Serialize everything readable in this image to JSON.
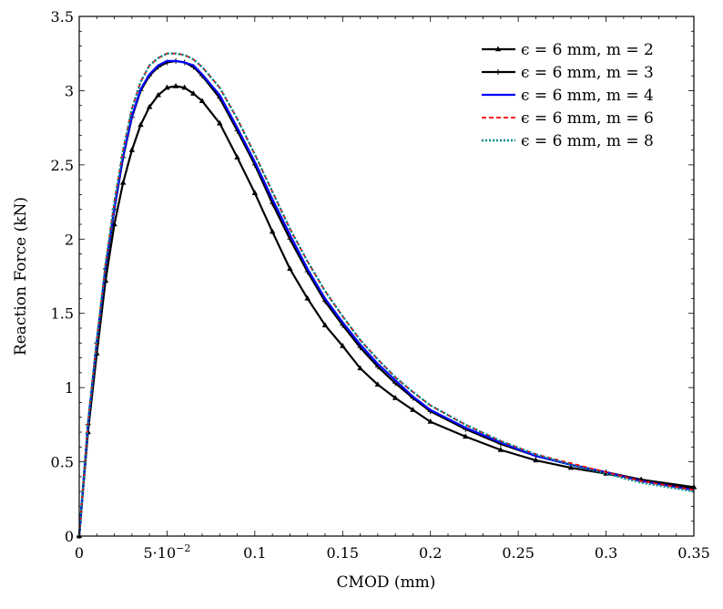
{
  "chart_data": {
    "type": "line",
    "title": "",
    "xlabel": "CMOD (mm)",
    "ylabel": "Reaction Force (kN)",
    "xlim": [
      0,
      0.35
    ],
    "ylim": [
      0,
      3.5
    ],
    "xticks": [
      0,
      0.05,
      0.1,
      0.15,
      0.2,
      0.25,
      0.3,
      0.35
    ],
    "xtick_labels": [
      "0",
      "5·10",
      "0.1",
      "0.15",
      "0.2",
      "0.25",
      "0.3",
      "0.35"
    ],
    "xtick_exponent": "−2",
    "yticks": [
      0,
      0.5,
      1,
      1.5,
      2,
      2.5,
      3,
      3.5
    ],
    "ytick_labels": [
      "0",
      "0.5",
      "1",
      "1.5",
      "2",
      "2.5",
      "3",
      "3.5"
    ],
    "grid": false,
    "legend_position": "top-right",
    "x": [
      0,
      0.005,
      0.01,
      0.015,
      0.02,
      0.025,
      0.03,
      0.035,
      0.04,
      0.045,
      0.05,
      0.055,
      0.06,
      0.065,
      0.07,
      0.08,
      0.09,
      0.1,
      0.11,
      0.12,
      0.13,
      0.14,
      0.15,
      0.16,
      0.17,
      0.18,
      0.19,
      0.2,
      0.22,
      0.24,
      0.26,
      0.28,
      0.3,
      0.32,
      0.35
    ],
    "series": [
      {
        "name": "ϵ = 6 mm, m = 2",
        "color": "#000000",
        "style": "solid",
        "marker": "triangle",
        "values": [
          0,
          0.7,
          1.23,
          1.72,
          2.1,
          2.38,
          2.6,
          2.77,
          2.89,
          2.97,
          3.02,
          3.03,
          3.02,
          2.98,
          2.93,
          2.78,
          2.55,
          2.31,
          2.05,
          1.8,
          1.6,
          1.42,
          1.28,
          1.13,
          1.02,
          0.93,
          0.85,
          0.77,
          0.67,
          0.58,
          0.51,
          0.46,
          0.42,
          0.38,
          0.33
        ]
      },
      {
        "name": "ϵ = 6 mm, m = 3",
        "color": "#000000",
        "style": "solid",
        "marker": "plus",
        "values": [
          0,
          0.75,
          1.3,
          1.8,
          2.2,
          2.55,
          2.82,
          3.0,
          3.1,
          3.16,
          3.19,
          3.2,
          3.19,
          3.16,
          3.1,
          2.95,
          2.73,
          2.5,
          2.24,
          2.0,
          1.78,
          1.58,
          1.42,
          1.27,
          1.14,
          1.03,
          0.93,
          0.84,
          0.72,
          0.62,
          0.54,
          0.48,
          0.43,
          0.38,
          0.32
        ]
      },
      {
        "name": "ϵ = 6 mm, m = 4",
        "color": "#0000ff",
        "style": "solid",
        "marker": "none",
        "values": [
          0,
          0.75,
          1.31,
          1.81,
          2.21,
          2.56,
          2.83,
          3.01,
          3.11,
          3.17,
          3.2,
          3.2,
          3.19,
          3.17,
          3.11,
          2.97,
          2.75,
          2.52,
          2.27,
          2.03,
          1.8,
          1.6,
          1.44,
          1.29,
          1.16,
          1.05,
          0.94,
          0.85,
          0.73,
          0.63,
          0.54,
          0.48,
          0.43,
          0.37,
          0.31
        ]
      },
      {
        "name": "ϵ = 6 mm, m = 6",
        "color": "#ff0000",
        "style": "dashed",
        "marker": "none",
        "values": [
          0,
          0.76,
          1.32,
          1.83,
          2.25,
          2.6,
          2.88,
          3.06,
          3.17,
          3.22,
          3.25,
          3.25,
          3.24,
          3.21,
          3.16,
          3.02,
          2.81,
          2.57,
          2.32,
          2.07,
          1.85,
          1.65,
          1.48,
          1.32,
          1.19,
          1.07,
          0.97,
          0.88,
          0.75,
          0.64,
          0.55,
          0.49,
          0.43,
          0.37,
          0.31
        ]
      },
      {
        "name": "ϵ = 6 mm, m = 8",
        "color": "#008b8b",
        "style": "dotted",
        "marker": "none",
        "values": [
          0,
          0.76,
          1.32,
          1.83,
          2.25,
          2.6,
          2.88,
          3.06,
          3.17,
          3.22,
          3.25,
          3.25,
          3.24,
          3.21,
          3.16,
          3.02,
          2.81,
          2.57,
          2.32,
          2.07,
          1.85,
          1.65,
          1.48,
          1.32,
          1.19,
          1.07,
          0.97,
          0.88,
          0.75,
          0.64,
          0.55,
          0.48,
          0.42,
          0.36,
          0.3
        ]
      }
    ]
  }
}
